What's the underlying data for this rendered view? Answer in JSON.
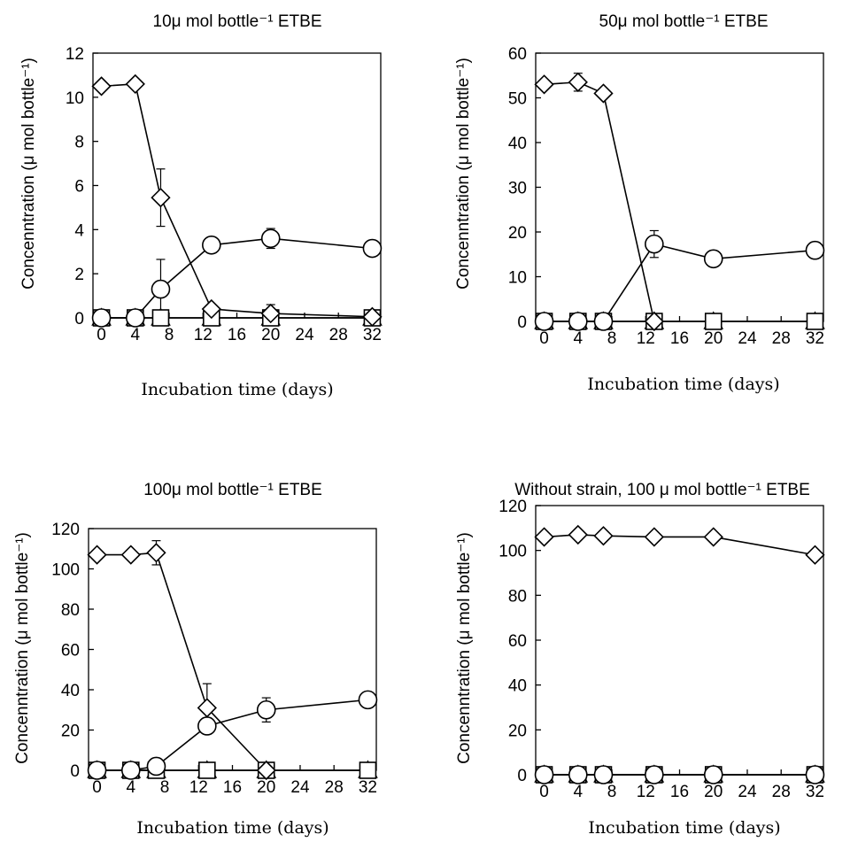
{
  "chart_data": [
    {
      "type": "line",
      "title": "10μ mol bottle⁻¹  ETBE",
      "xlabel": "Incubation time (days)",
      "ylabel": "Concenntration  (μ mol bottle⁻¹)",
      "xlim": [
        -1,
        33
      ],
      "ylim": [
        0,
        12
      ],
      "xticks": [
        "0",
        "4",
        "8",
        "12",
        "16",
        "20",
        "24",
        "28",
        "32"
      ],
      "yticks": [
        "0",
        "2",
        "4",
        "6",
        "8",
        "10",
        "12"
      ],
      "grid": false,
      "series": [
        {
          "marker": "diamond",
          "x": [
            0,
            4,
            7,
            13,
            20,
            32
          ],
          "y": [
            10.5,
            10.6,
            5.45,
            0.4,
            0.2,
            0.05
          ],
          "yerr": [
            0,
            0,
            1.3,
            0,
            0.4,
            0
          ]
        },
        {
          "marker": "circle",
          "x": [
            0,
            4,
            7,
            13,
            20,
            32
          ],
          "y": [
            0,
            0,
            1.3,
            3.3,
            3.6,
            3.15
          ],
          "yerr": [
            0,
            0,
            1.35,
            0,
            0.45,
            0
          ]
        },
        {
          "marker": "triangle",
          "x": [
            0,
            4,
            7,
            13,
            20,
            32
          ],
          "y": [
            0,
            0,
            0,
            0,
            0,
            0
          ],
          "yerr": [
            0,
            0,
            0,
            0,
            0,
            0
          ]
        },
        {
          "marker": "square",
          "x": [
            0,
            4,
            7,
            13,
            20,
            32
          ],
          "y": [
            0,
            0,
            0,
            0,
            0,
            0
          ],
          "yerr": [
            0,
            0,
            0,
            0,
            0,
            0
          ]
        }
      ]
    },
    {
      "type": "line",
      "title": "50μ mol bottle⁻¹  ETBE",
      "xlabel": "Incubation time (days)",
      "ylabel": "Concenntration  (μ mol bottle⁻¹)",
      "xlim": [
        -1,
        33
      ],
      "ylim": [
        0,
        60
      ],
      "xticks": [
        "0",
        "4",
        "8",
        "12",
        "16",
        "20",
        "24",
        "28",
        "32"
      ],
      "yticks": [
        "0",
        "10",
        "20",
        "30",
        "40",
        "50",
        "60"
      ],
      "grid": false,
      "series": [
        {
          "marker": "diamond",
          "x": [
            0,
            4,
            7,
            13
          ],
          "y": [
            53,
            53.5,
            51,
            0
          ],
          "yerr": [
            0,
            2,
            0,
            0
          ]
        },
        {
          "marker": "circle",
          "x": [
            0,
            4,
            7,
            13,
            20,
            32
          ],
          "y": [
            0,
            0,
            0,
            17.3,
            14,
            15.9
          ],
          "yerr": [
            0,
            0,
            0,
            3,
            0,
            0
          ]
        },
        {
          "marker": "triangle",
          "x": [
            0,
            4,
            7,
            13,
            20,
            32
          ],
          "y": [
            0,
            0,
            0,
            0,
            0,
            0
          ],
          "yerr": [
            0,
            0,
            0,
            0,
            0,
            0
          ]
        },
        {
          "marker": "square",
          "x": [
            0,
            4,
            7,
            13,
            20,
            32
          ],
          "y": [
            0,
            0,
            0,
            0,
            0,
            0
          ],
          "yerr": [
            0,
            0,
            0,
            0,
            0,
            0
          ]
        }
      ]
    },
    {
      "type": "line",
      "title": "100μ mol bottle⁻¹  ETBE",
      "xlabel": "Incubation time (days)",
      "ylabel": "Concenntration  (μ mol bottle⁻¹)",
      "xlim": [
        -1,
        33
      ],
      "ylim": [
        0,
        120
      ],
      "xticks": [
        "0",
        "4",
        "8",
        "12",
        "16",
        "20",
        "24",
        "28",
        "32"
      ],
      "yticks": [
        "0",
        "20",
        "40",
        "60",
        "80",
        "100",
        "120"
      ],
      "grid": false,
      "series": [
        {
          "marker": "diamond",
          "x": [
            0,
            4,
            7,
            13,
            20
          ],
          "y": [
            107,
            107,
            108,
            31,
            0
          ],
          "yerr": [
            0,
            0,
            6,
            12,
            0
          ]
        },
        {
          "marker": "circle",
          "x": [
            0,
            4,
            7,
            13,
            20,
            32
          ],
          "y": [
            0,
            0,
            2,
            22,
            30,
            35
          ],
          "yerr": [
            0,
            0,
            0,
            4,
            6,
            0
          ]
        },
        {
          "marker": "triangle",
          "x": [
            0,
            4,
            7,
            13,
            20,
            32
          ],
          "y": [
            0,
            0,
            0,
            0,
            0,
            0
          ],
          "yerr": [
            0,
            0,
            0,
            0,
            0,
            0
          ]
        },
        {
          "marker": "square",
          "x": [
            0,
            4,
            7,
            13,
            20,
            32
          ],
          "y": [
            0,
            0,
            0,
            0,
            0,
            0
          ],
          "yerr": [
            0,
            0,
            0,
            0,
            0,
            0
          ]
        }
      ]
    },
    {
      "type": "line",
      "title": "Without strain, 100  μ mol bottle⁻¹ ETBE",
      "xlabel": "Incubation time (days)",
      "ylabel": "Concenntration  (μ mol bottle⁻¹)",
      "xlim": [
        -1,
        33
      ],
      "ylim": [
        0,
        120
      ],
      "xticks": [
        "0",
        "4",
        "8",
        "12",
        "16",
        "20",
        "24",
        "28",
        "32"
      ],
      "yticks": [
        "0",
        "20",
        "40",
        "60",
        "80",
        "100",
        "120"
      ],
      "grid": false,
      "series": [
        {
          "marker": "diamond",
          "x": [
            0,
            4,
            7,
            13,
            20,
            32
          ],
          "y": [
            106,
            107,
            106.5,
            106,
            106,
            98
          ],
          "yerr": [
            0,
            0,
            0,
            0,
            0,
            0
          ]
        },
        {
          "marker": "circle",
          "x": [
            0,
            4,
            7,
            13,
            20,
            32
          ],
          "y": [
            0,
            0,
            0,
            0,
            0,
            0
          ],
          "yerr": [
            0,
            0,
            0,
            0,
            0,
            0
          ]
        },
        {
          "marker": "triangle",
          "x": [
            0,
            4,
            7,
            13,
            20,
            32
          ],
          "y": [
            0,
            0,
            0,
            0,
            0,
            0
          ],
          "yerr": [
            0,
            0,
            0,
            0,
            0,
            0
          ]
        },
        {
          "marker": "square",
          "x": [
            0,
            4,
            7,
            13,
            20,
            32
          ],
          "y": [
            0,
            0,
            0,
            0,
            0,
            0
          ],
          "yerr": [
            0,
            0,
            0,
            0,
            0,
            0
          ]
        }
      ]
    }
  ]
}
